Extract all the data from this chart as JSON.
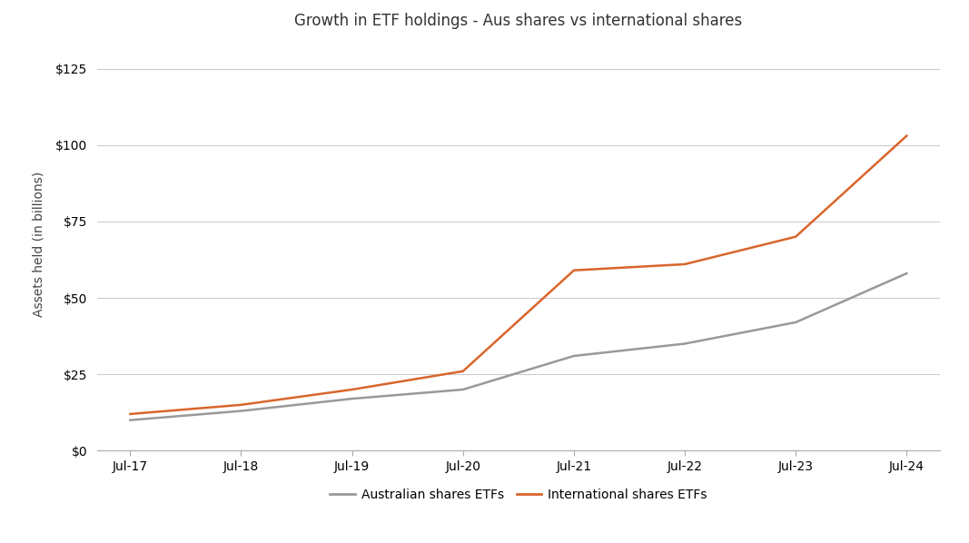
{
  "title": "Growth in ETF holdings - Aus shares vs international shares",
  "ylabel": "Assets held (in billions)",
  "x_labels": [
    "Jul-17",
    "Jul-18",
    "Jul-19",
    "Jul-20",
    "Jul-21",
    "Jul-22",
    "Jul-23",
    "Jul-24"
  ],
  "x_values": [
    0,
    1,
    2,
    3,
    4,
    5,
    6,
    7
  ],
  "aus_shares": [
    10,
    13,
    17,
    20,
    31,
    35,
    42,
    58
  ],
  "intl_shares": [
    12,
    15,
    20,
    26,
    59,
    61,
    70,
    103
  ],
  "aus_color": "#999999",
  "intl_color": "#d9652b",
  "background_color": "#ffffff",
  "ylim": [
    0,
    135
  ],
  "yticks": [
    0,
    25,
    50,
    75,
    100,
    125
  ],
  "ytick_labels": [
    "$0",
    "$25",
    "$50",
    "$75",
    "$100",
    "$125"
  ],
  "legend_aus": "Australian shares ETFs",
  "legend_intl": "International shares ETFs",
  "title_fontsize": 12,
  "axis_fontsize": 10,
  "tick_fontsize": 10,
  "legend_fontsize": 10,
  "line_width": 1.8
}
